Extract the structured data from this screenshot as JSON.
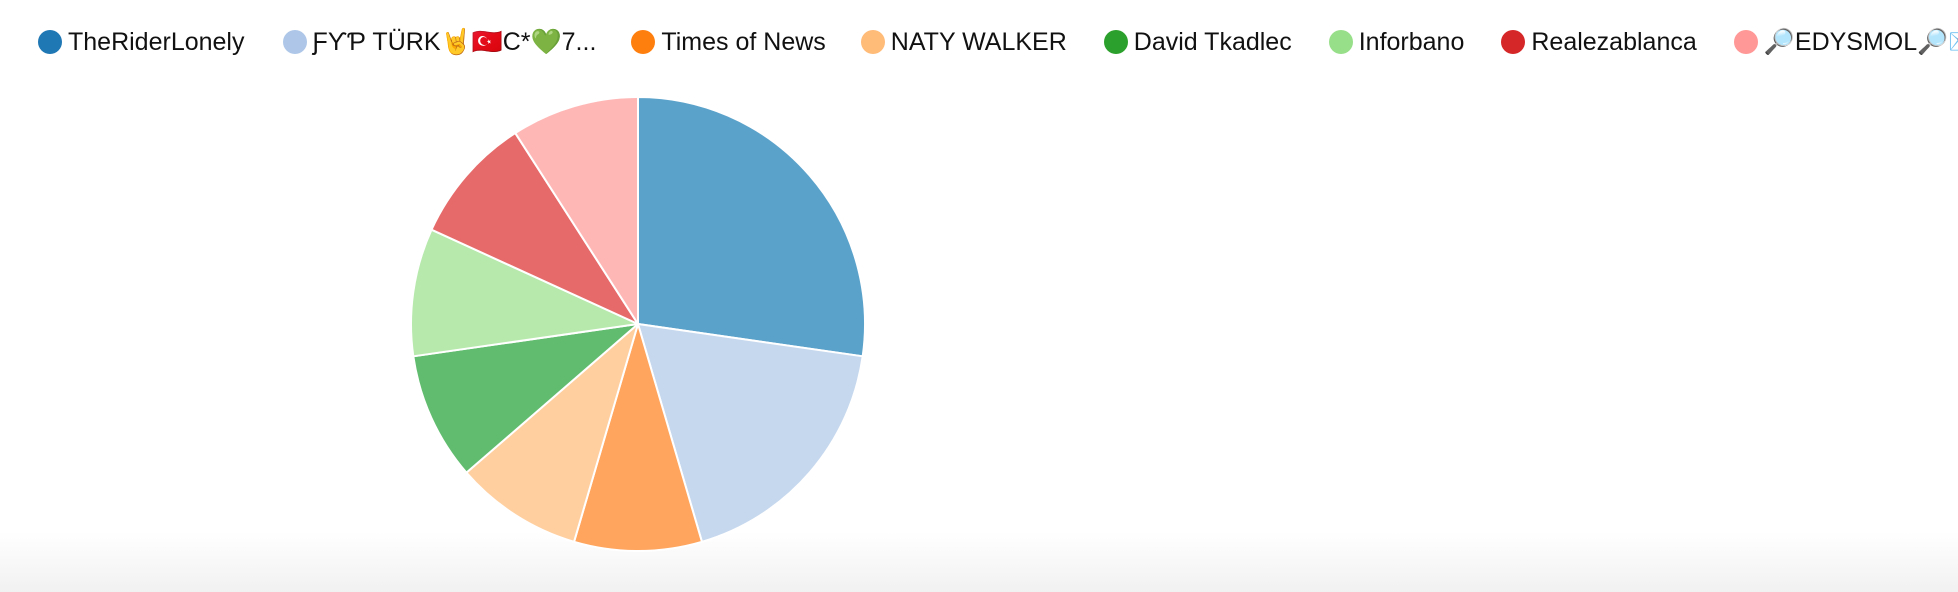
{
  "chart_data": {
    "type": "pie",
    "title": "",
    "start_angle_deg": 0,
    "series": [
      {
        "name": "TheRiderLonely",
        "value": 30,
        "legend_color": "#1f77b4",
        "slice_color": "#5ba2cb"
      },
      {
        "name": "ƑϒƤ TÜRK🤘🇹🇷C*💚7...",
        "value": 20,
        "legend_color": "#aec7e8",
        "slice_color": "#c6d8ee"
      },
      {
        "name": "Times of News",
        "value": 10,
        "legend_color": "#ff7f0e",
        "slice_color": "#ffa55e"
      },
      {
        "name": "NATY WALKER",
        "value": 10,
        "legend_color": "#ffbb78",
        "slice_color": "#ffcfa0"
      },
      {
        "name": "David Tkadlec",
        "value": 10,
        "legend_color": "#2ca02c",
        "slice_color": "#62bc6f"
      },
      {
        "name": "Inforbano",
        "value": 10,
        "legend_color": "#98df8a",
        "slice_color": "#b7e9ad"
      },
      {
        "name": "Realezablanca",
        "value": 10,
        "legend_color": "#d62728",
        "slice_color": "#e66a69"
      },
      {
        "name": "🔎EDYSMOL🔎💌🛎",
        "value": 10,
        "legend_color": "#ff9896",
        "slice_color": "#ffb7b6"
      }
    ],
    "legend_position": "top"
  }
}
